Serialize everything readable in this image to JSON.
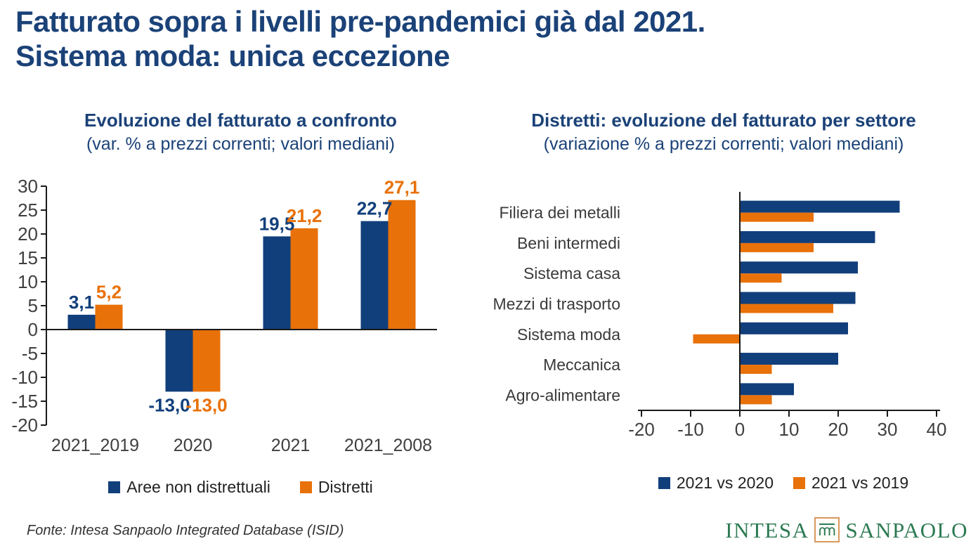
{
  "page": {
    "title_line1": "Fatturato sopra i livelli pre-pandemici già dal 2021.",
    "title_line2": "Sistema moda: unica eccezione",
    "footer_source": "Fonte: Intesa Sanpaolo Integrated Database (ISID)",
    "logo": {
      "word_left": "INTESA",
      "word_right": "SANPAOLO"
    }
  },
  "colors": {
    "navy": "#113F7B",
    "orange": "#E87109",
    "title_navy": "#1B4278",
    "axis_text": "#3F3F3F",
    "axis_line": "#1a1a1a",
    "logo_green": "#2C7A52",
    "logo_border": "#D9985C"
  },
  "chart_data": [
    {
      "type": "bar",
      "title": "Evoluzione del fatturato a confronto",
      "subtitle": "(var. % a prezzi correnti; valori mediani)",
      "categories": [
        "2021_2019",
        "2020",
        "2021",
        "2021_2008"
      ],
      "series": [
        {
          "name": "Aree non distrettuali",
          "color_key": "navy",
          "values": [
            3.1,
            -13.0,
            19.5,
            22.7
          ],
          "labels": [
            "3,1",
            "-13,0",
            "19,5",
            "22,7"
          ]
        },
        {
          "name": "Distretti",
          "color_key": "orange",
          "values": [
            5.2,
            -13.0,
            21.2,
            27.1
          ],
          "labels": [
            "5,2",
            "-13,0",
            "21,2",
            "27,1"
          ]
        }
      ],
      "ylim": [
        -20,
        30
      ],
      "yticks": [
        30,
        25,
        20,
        15,
        10,
        5,
        0,
        -5,
        -10,
        -15,
        -20
      ],
      "grid": false,
      "legend_position": "bottom"
    },
    {
      "type": "bar-horizontal",
      "title": "Distretti: evoluzione del fatturato per settore",
      "subtitle": "(variazione % a prezzi correnti; valori mediani)",
      "categories": [
        "Filiera dei metalli",
        "Beni intermedi",
        "Sistema casa",
        "Mezzi di trasporto",
        "Sistema moda",
        "Meccanica",
        "Agro-alimentare"
      ],
      "series": [
        {
          "name": "2021 vs 2020",
          "color_key": "navy",
          "values": [
            32.5,
            27.5,
            24.0,
            23.5,
            22.0,
            20.0,
            11.0
          ]
        },
        {
          "name": "2021 vs 2019",
          "color_key": "orange",
          "values": [
            15.0,
            15.0,
            8.5,
            19.0,
            -9.5,
            6.5,
            6.5
          ]
        }
      ],
      "xlim": [
        -20,
        40
      ],
      "xticks": [
        -20,
        -10,
        0,
        10,
        20,
        30,
        40
      ],
      "grid": false,
      "legend_position": "bottom"
    }
  ]
}
